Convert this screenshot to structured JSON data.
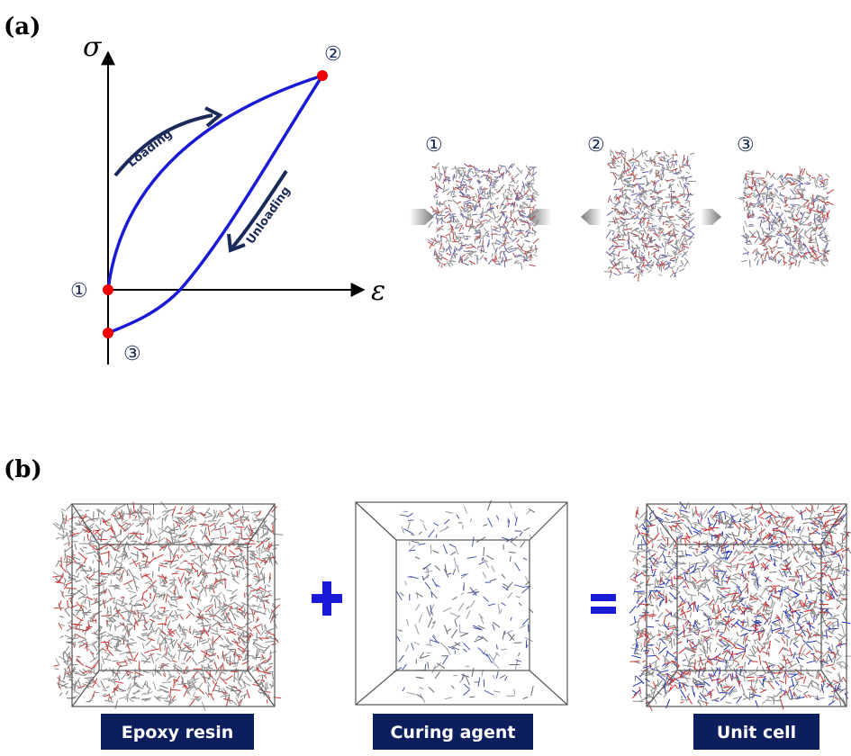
{
  "panel_a": {
    "label": "(a)",
    "y_axis": "σ",
    "x_axis": "ε",
    "loading": "Loading",
    "unloading": "Unloading",
    "graph_points": [
      "①",
      "②",
      "③"
    ],
    "state_labels": [
      "①",
      "②",
      "③"
    ]
  },
  "panel_b": {
    "label": "(b)",
    "boxes": [
      "Epoxy resin",
      "Curing agent",
      "Unit cell"
    ]
  }
}
